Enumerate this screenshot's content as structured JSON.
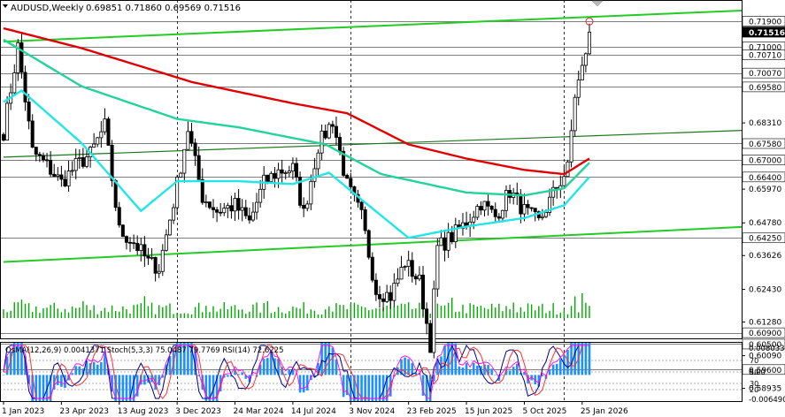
{
  "header": {
    "symbol": "AUDUSD,Weekly",
    "ohlc": "0.69851 0.71860 0.69569 0.71516",
    "indicator_label": "OsMA(12,26,9) 0.0041371  Stoch(5,3,3) 75.0487 79.7769  RSI(14) 72.6225"
  },
  "colors": {
    "bull_candle": "#000000",
    "bear_candle": "#000000",
    "ma_red": "#e00000",
    "ma_teal": "#22d39a",
    "ma_cyan": "#22e6e6",
    "trend_green": "#22cc22",
    "level_line": "#000000",
    "current_price_bg": "#000000",
    "osma_hist": "#1e90ff",
    "stoch_main": "#00008b",
    "stoch_signal": "#ff3030",
    "rsi": "#ff00ff"
  },
  "chart_data": {
    "type": "candlestick",
    "title": "AUDUSD,Weekly",
    "ylim": [
      0.5989,
      0.7215
    ],
    "price_levels": [
      "0.71900",
      "0.71000",
      "0.70710",
      "0.70070",
      "0.69580",
      "0.67580",
      "0.67000",
      "0.66400",
      "0.64250",
      "0.60900",
      "0.60500",
      "0.59600"
    ],
    "current_price": "0.71516",
    "y_ticks": [
      "0.68310",
      "0.65970",
      "0.64780",
      "0.63626",
      "0.62430",
      "0.61280",
      "0.60090",
      "0.58935"
    ],
    "x_ticks": [
      "1 Jan 2023",
      "23 Apr 2023",
      "13 Aug 2023",
      "3 Dec 2023",
      "24 Mar 2024",
      "14 Jul 2024",
      "3 Nov 2024",
      "23 Feb 2025",
      "15 Jun 2025",
      "5 Oct 2025",
      "25 Jan 2026"
    ],
    "x_range": [
      "2023-01-01",
      "2026-02-08"
    ],
    "vertical_lines": [
      "2023-12-03",
      "2024-11-03",
      "2025-12-21"
    ],
    "anchors": [
      [
        "2023-01-01",
        0.68
      ],
      [
        "2023-01-29",
        0.71
      ],
      [
        "2023-02-26",
        0.673
      ],
      [
        "2023-03-26",
        0.668
      ],
      [
        "2023-04-23",
        0.662
      ],
      [
        "2023-05-21",
        0.668
      ],
      [
        "2023-06-18",
        0.672
      ],
      [
        "2023-07-16",
        0.682
      ],
      [
        "2023-08-13",
        0.645
      ],
      [
        "2023-09-10",
        0.641
      ],
      [
        "2023-10-08",
        0.634
      ],
      [
        "2023-10-29",
        0.632
      ],
      [
        "2023-11-26",
        0.655
      ],
      [
        "2023-12-24",
        0.681
      ],
      [
        "2024-01-21",
        0.657
      ],
      [
        "2024-02-18",
        0.652
      ],
      [
        "2024-03-24",
        0.654
      ],
      [
        "2024-04-21",
        0.648
      ],
      [
        "2024-05-19",
        0.662
      ],
      [
        "2024-06-16",
        0.666
      ],
      [
        "2024-07-14",
        0.667
      ],
      [
        "2024-08-04",
        0.651
      ],
      [
        "2024-09-01",
        0.675
      ],
      [
        "2024-09-29",
        0.684
      ],
      [
        "2024-10-27",
        0.661
      ],
      [
        "2024-11-24",
        0.65
      ],
      [
        "2024-12-22",
        0.624
      ],
      [
        "2025-01-19",
        0.622
      ],
      [
        "2025-02-16",
        0.634
      ],
      [
        "2025-03-16",
        0.627
      ],
      [
        "2025-04-06",
        0.605
      ],
      [
        "2025-04-20",
        0.639
      ],
      [
        "2025-05-18",
        0.643
      ],
      [
        "2025-06-15",
        0.648
      ],
      [
        "2025-07-13",
        0.655
      ],
      [
        "2025-08-10",
        0.65
      ],
      [
        "2025-09-07",
        0.659
      ],
      [
        "2025-10-05",
        0.652
      ],
      [
        "2025-11-02",
        0.648
      ],
      [
        "2025-11-30",
        0.658
      ],
      [
        "2025-12-28",
        0.667
      ],
      [
        "2026-01-11",
        0.693
      ],
      [
        "2026-01-25",
        0.702
      ],
      [
        "2026-02-08",
        0.715
      ]
    ],
    "ma_red": [
      [
        "2023-01-01",
        0.7165
      ],
      [
        "2023-06-01",
        0.7095
      ],
      [
        "2024-01-01",
        0.6975
      ],
      [
        "2024-07-14",
        0.69
      ],
      [
        "2024-10-27",
        0.6865
      ],
      [
        "2025-02-23",
        0.6755
      ],
      [
        "2025-06-15",
        0.6705
      ],
      [
        "2025-10-05",
        0.6665
      ],
      [
        "2025-12-21",
        0.665
      ],
      [
        "2026-02-08",
        0.6705
      ]
    ],
    "ma_teal": [
      [
        "2023-01-01",
        0.7125
      ],
      [
        "2023-06-01",
        0.696
      ],
      [
        "2023-12-03",
        0.6845
      ],
      [
        "2024-04-01",
        0.6815
      ],
      [
        "2024-09-15",
        0.6755
      ],
      [
        "2025-01-01",
        0.665
      ],
      [
        "2025-06-15",
        0.6585
      ],
      [
        "2025-10-05",
        0.6575
      ],
      [
        "2025-12-21",
        0.66
      ],
      [
        "2026-02-08",
        0.669
      ]
    ],
    "ma_cyan": [
      [
        "2023-01-01",
        0.6905
      ],
      [
        "2023-02-05",
        0.6945
      ],
      [
        "2023-06-01",
        0.676
      ],
      [
        "2023-09-24",
        0.652
      ],
      [
        "2023-12-03",
        0.6625
      ],
      [
        "2024-04-01",
        0.6625
      ],
      [
        "2024-07-14",
        0.6615
      ],
      [
        "2024-09-22",
        0.6655
      ],
      [
        "2024-11-24",
        0.656
      ],
      [
        "2025-02-23",
        0.6425
      ],
      [
        "2025-06-15",
        0.6465
      ],
      [
        "2025-10-05",
        0.6495
      ],
      [
        "2025-12-21",
        0.654
      ],
      [
        "2026-02-08",
        0.664
      ]
    ],
    "trend_upper": [
      [
        "2023-01-01",
        0.7118
      ],
      [
        "2026-02-08",
        0.7205
      ]
    ],
    "trend_lower": [
      [
        "2023-01-01",
        0.634
      ],
      [
        "2026-02-08",
        0.6438
      ]
    ],
    "trend_mid": [
      [
        "2023-01-01",
        0.671
      ],
      [
        "2026-02-08",
        0.6785
      ]
    ],
    "volume_peak_date": "2026-01-25"
  },
  "indicator": {
    "ylim": [
      -0.0065,
      0.008
    ],
    "y_ticks": [
      "0.0080337",
      "0.00",
      "-0.006490"
    ],
    "level_labels": [
      "70",
      "50",
      "30",
      "20"
    ]
  }
}
